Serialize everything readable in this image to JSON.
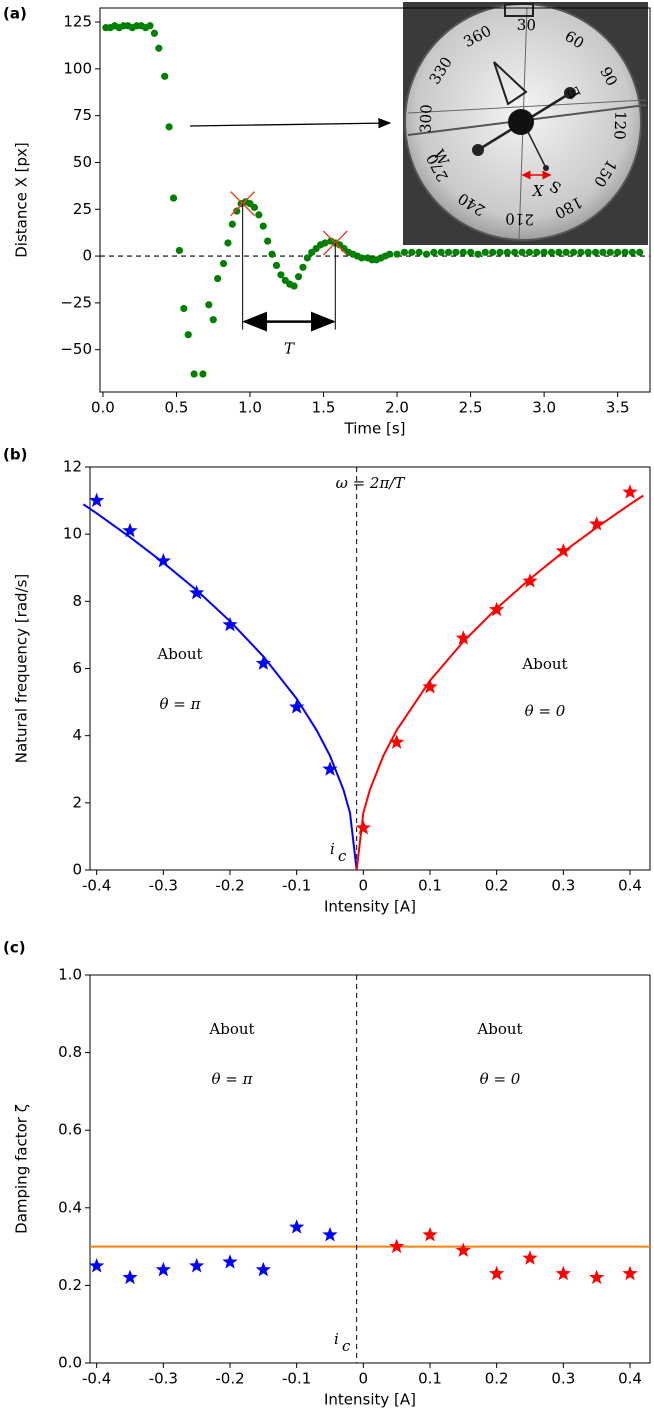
{
  "chart_data": [
    {
      "type": "scatter",
      "panel_label": "(a)",
      "xlabel": "Time [s]",
      "ylabel": "Distance X [px]",
      "color": "#008000",
      "x": [
        0.02,
        0.05,
        0.08,
        0.11,
        0.14,
        0.17,
        0.2,
        0.23,
        0.26,
        0.29,
        0.32,
        0.35,
        0.38,
        0.42,
        0.45,
        0.48,
        0.52,
        0.55,
        0.58,
        0.62,
        0.68,
        0.72,
        0.75,
        0.78,
        0.82,
        0.85,
        0.88,
        0.91,
        0.94,
        0.97,
        1.0,
        1.03,
        1.06,
        1.09,
        1.12,
        1.15,
        1.18,
        1.21,
        1.24,
        1.27,
        1.3,
        1.33,
        1.36,
        1.39,
        1.42,
        1.45,
        1.48,
        1.51,
        1.55,
        1.58,
        1.61,
        1.64,
        1.67,
        1.7,
        1.73,
        1.76,
        1.8,
        1.83,
        1.86,
        1.89,
        1.92,
        1.95,
        2.0,
        2.05,
        2.1,
        2.15,
        2.2,
        2.25,
        2.3,
        2.35,
        2.4,
        2.45,
        2.5,
        2.55,
        2.6,
        2.65,
        2.7,
        2.75,
        2.8,
        2.85,
        2.9,
        2.95,
        3.0,
        3.05,
        3.1,
        3.15,
        3.2,
        3.25,
        3.3,
        3.35,
        3.4,
        3.45,
        3.5,
        3.55,
        3.6,
        3.65
      ],
      "values": [
        122,
        122,
        123,
        122,
        123,
        123,
        122,
        123,
        123,
        122,
        123,
        119,
        111,
        96,
        69,
        31,
        3,
        -28,
        -42,
        -63,
        -63,
        -26,
        -34,
        -12,
        -4,
        7,
        17,
        24,
        28,
        29,
        28,
        26,
        22,
        16,
        8,
        1,
        -5,
        -10,
        -13,
        -15,
        -16,
        -11,
        -6,
        -1,
        2,
        4,
        6,
        7,
        8,
        7,
        6,
        4,
        2,
        1,
        0,
        -1,
        -1,
        -2,
        -2,
        -1,
        0,
        1,
        1,
        2,
        2,
        2,
        1,
        2,
        2,
        2,
        2,
        2,
        2,
        1,
        2,
        2,
        2,
        2,
        2,
        2,
        2,
        2,
        2,
        2,
        2,
        2,
        2,
        2,
        2,
        2,
        2,
        2,
        2,
        2,
        2,
        2
      ],
      "xlim": [
        -0.02,
        3.72
      ],
      "xticks": [
        {
          "value": 0,
          "label": "0.0"
        },
        0.5,
        {
          "value": 1,
          "label": "1.0"
        },
        1.5,
        {
          "value": 2,
          "label": "2.0"
        },
        2.5,
        {
          "value": 3,
          "label": "3.0"
        },
        3.5
      ],
      "ylim": [
        -72.6,
        132.5
      ],
      "yticks": [
        {
          "value": -50,
          "label": "−50"
        },
        {
          "value": -25,
          "label": "−25"
        },
        0,
        25,
        50,
        75,
        100,
        125
      ],
      "hlines": [
        {
          "value": 0,
          "color": "#000000",
          "dashed": true
        }
      ],
      "peak_markers": {
        "x": [
          0.95,
          1.58
        ],
        "values": [
          28,
          7
        ],
        "color": "#e8411e"
      },
      "period_label": "T",
      "inset": {
        "dial_labels": [
          "360",
          "30",
          "60",
          "90",
          "120",
          "150",
          "180",
          "210",
          "240",
          "270",
          "300",
          "330"
        ],
        "letters": [
          "W",
          "S",
          "E"
        ],
        "measure_label": "X"
      }
    },
    {
      "type": "scatter",
      "panel_label": "(b)",
      "xlabel": "Intensity [A]",
      "ylabel": "Natural frequency [rad/s]",
      "series": [
        {
          "marker": "star",
          "color": "#0000ff",
          "x": [
            -0.4,
            -0.35,
            -0.3,
            -0.25,
            -0.2,
            -0.15,
            -0.1,
            -0.05
          ],
          "values": [
            11.0,
            10.1,
            9.2,
            8.25,
            7.3,
            6.15,
            4.85,
            3.0
          ]
        },
        {
          "marker": "star",
          "color": "#ff0000",
          "x": [
            0,
            0.05,
            0.1,
            0.15,
            0.2,
            0.25,
            0.3,
            0.35,
            0.4
          ],
          "values": [
            1.25,
            3.8,
            5.45,
            6.9,
            7.75,
            8.6,
            9.5,
            10.3,
            11.25
          ]
        },
        {
          "type": "line",
          "color": "#0000ff",
          "x": [
            -0.42,
            -0.4,
            -0.35,
            -0.3,
            -0.25,
            -0.2,
            -0.15,
            -0.1,
            -0.07,
            -0.05,
            -0.03,
            -0.02,
            -0.01
          ],
          "values": [
            10.89,
            10.62,
            9.91,
            9.15,
            8.33,
            7.41,
            6.36,
            5.1,
            4.16,
            3.4,
            2.4,
            1.7,
            0
          ]
        },
        {
          "type": "line",
          "color": "#ff0000",
          "x": [
            -0.01,
            0,
            0.01,
            0.03,
            0.05,
            0.1,
            0.15,
            0.2,
            0.25,
            0.3,
            0.35,
            0.4,
            0.42
          ],
          "values": [
            0,
            1.7,
            2.4,
            3.4,
            4.16,
            5.64,
            6.8,
            7.79,
            8.67,
            9.47,
            10.2,
            10.89,
            11.15
          ]
        }
      ],
      "xlim": [
        -0.41,
        0.43
      ],
      "xticks": [
        -0.4,
        -0.3,
        -0.2,
        -0.1,
        0,
        0.1,
        0.2,
        0.3,
        0.4
      ],
      "ylim": [
        0,
        12
      ],
      "yticks": [
        0,
        2,
        4,
        6,
        8,
        10,
        12
      ],
      "vlines": [
        {
          "value": -0.01,
          "color": "#000000",
          "dashed": true
        }
      ],
      "annotations": [
        "ω = 2π/T",
        "About",
        "θ = π",
        "About",
        "θ = 0"
      ],
      "critical_label": {
        "text": "i",
        "sub": "c"
      }
    },
    {
      "type": "scatter",
      "panel_label": "(c)",
      "xlabel": "Intensity [A]",
      "ylabel": "Damping factor ζ",
      "series": [
        {
          "marker": "star",
          "color": "#0000ff",
          "x": [
            -0.4,
            -0.35,
            -0.3,
            -0.25,
            -0.2,
            -0.15,
            -0.1,
            -0.05
          ],
          "values": [
            0.25,
            0.22,
            0.24,
            0.25,
            0.26,
            0.24,
            0.35,
            0.33
          ]
        },
        {
          "marker": "star",
          "color": "#ff0000",
          "x": [
            0.05,
            0.1,
            0.15,
            0.2,
            0.25,
            0.3,
            0.35,
            0.4
          ],
          "values": [
            0.3,
            0.33,
            0.29,
            0.23,
            0.27,
            0.23,
            0.22,
            0.23
          ]
        }
      ],
      "xlim": [
        -0.41,
        0.43
      ],
      "xticks": [
        -0.4,
        -0.3,
        -0.2,
        -0.1,
        0,
        0.1,
        0.2,
        0.3,
        0.4
      ],
      "ylim": [
        0,
        1
      ],
      "yticks": [
        {
          "value": 0,
          "label": "0.0"
        },
        0.2,
        0.4,
        0.6,
        0.8,
        {
          "value": 1,
          "label": "1.0"
        }
      ],
      "hlines": [
        {
          "value": 0.3,
          "color": "#ff7f0e",
          "dashed": false
        }
      ],
      "vlines": [
        {
          "value": -0.01,
          "color": "#000000",
          "dashed": true
        }
      ],
      "annotations": [
        "About",
        "θ = π",
        "About",
        "θ = 0"
      ],
      "critical_label": {
        "text": "i",
        "sub": "c"
      }
    }
  ]
}
